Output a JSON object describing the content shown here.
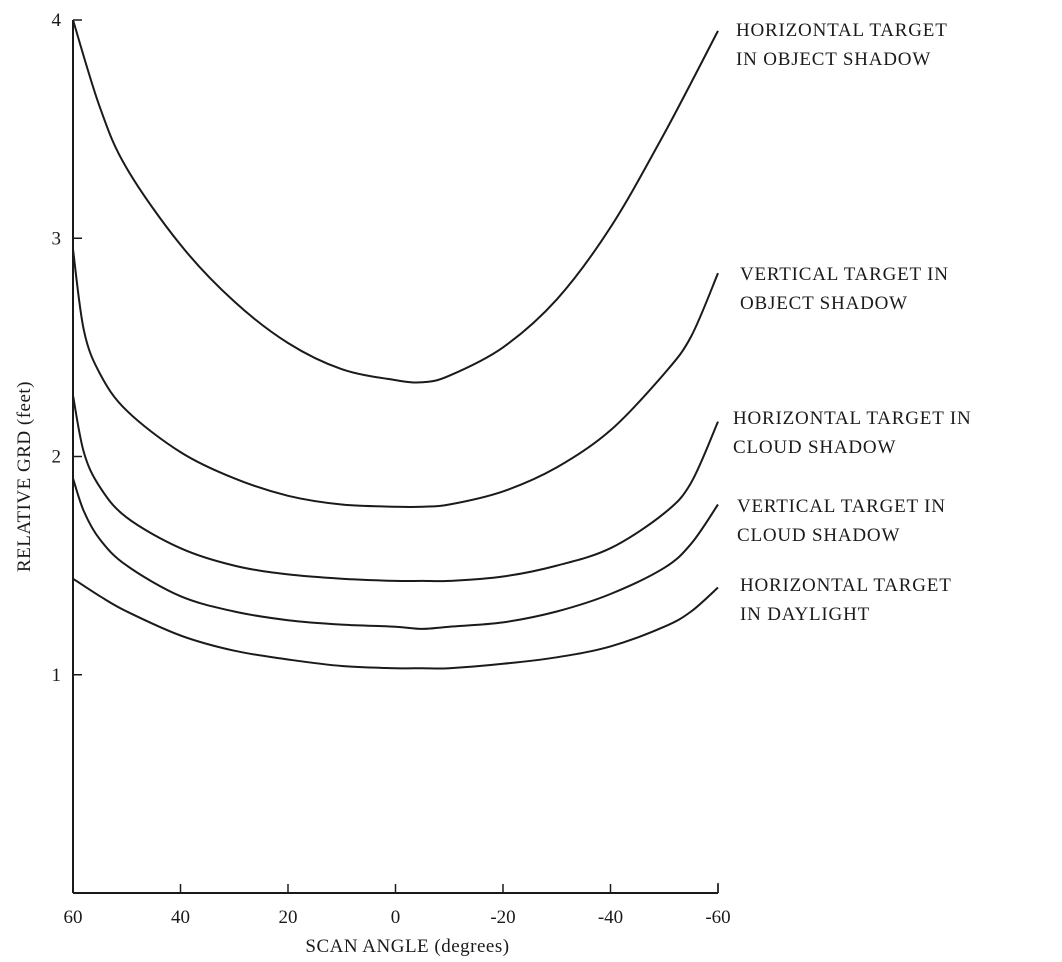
{
  "chart_data": {
    "type": "line",
    "title": "",
    "xlabel": "SCAN ANGLE (degrees)",
    "ylabel": "RELATIVE GRD (feet)",
    "xlim": [
      60,
      -60
    ],
    "ylim": [
      0,
      4
    ],
    "x_ticks": [
      60,
      40,
      20,
      0,
      -20,
      -40,
      -60
    ],
    "x_tick_labels": [
      "60",
      "40",
      "20",
      "0",
      "-20",
      "-40",
      "-60"
    ],
    "y_ticks": [
      1,
      2,
      3,
      4
    ],
    "y_tick_labels": [
      "1",
      "2",
      "3",
      "4"
    ],
    "grid": false,
    "series": [
      {
        "name": "HORIZONTAL TARGET IN OBJECT SHADOW",
        "label_lines": [
          "HORIZONTAL TARGET",
          "IN OBJECT SHADOW"
        ],
        "x": [
          60,
          55,
          50,
          40,
          30,
          20,
          10,
          0,
          -5,
          -10,
          -20,
          -30,
          -40,
          -50,
          -60
        ],
        "y": [
          4.0,
          3.6,
          3.32,
          2.97,
          2.71,
          2.52,
          2.4,
          2.35,
          2.34,
          2.37,
          2.5,
          2.72,
          3.05,
          3.48,
          3.95
        ]
      },
      {
        "name": "VERTICAL TARGET IN OBJECT SHADOW",
        "label_lines": [
          "VERTICAL TARGET IN",
          "OBJECT SHADOW"
        ],
        "x": [
          60,
          58,
          55,
          50,
          40,
          30,
          20,
          10,
          0,
          -5,
          -10,
          -20,
          -30,
          -40,
          -50,
          -55,
          -60
        ],
        "y": [
          2.95,
          2.58,
          2.38,
          2.21,
          2.02,
          1.9,
          1.82,
          1.78,
          1.77,
          1.77,
          1.78,
          1.84,
          1.95,
          2.12,
          2.38,
          2.55,
          2.84
        ]
      },
      {
        "name": "HORIZONTAL TARGET IN CLOUD SHADOW",
        "label_lines": [
          "HORIZONTAL TARGET IN",
          "CLOUD SHADOW"
        ],
        "x": [
          60,
          58,
          55,
          50,
          40,
          30,
          20,
          10,
          0,
          -5,
          -10,
          -20,
          -30,
          -40,
          -50,
          -55,
          -60
        ],
        "y": [
          2.28,
          2.02,
          1.86,
          1.72,
          1.58,
          1.5,
          1.46,
          1.44,
          1.43,
          1.43,
          1.43,
          1.45,
          1.5,
          1.58,
          1.74,
          1.88,
          2.16
        ]
      },
      {
        "name": "VERTICAL TARGET IN CLOUD SHADOW",
        "label_lines": [
          "VERTICAL TARGET IN",
          "CLOUD SHADOW"
        ],
        "x": [
          60,
          58,
          55,
          50,
          40,
          30,
          20,
          10,
          0,
          -5,
          -10,
          -20,
          -30,
          -40,
          -50,
          -55,
          -60
        ],
        "y": [
          1.9,
          1.75,
          1.62,
          1.5,
          1.36,
          1.29,
          1.25,
          1.23,
          1.22,
          1.21,
          1.22,
          1.24,
          1.29,
          1.37,
          1.49,
          1.6,
          1.78
        ]
      },
      {
        "name": "HORIZONTAL TARGET IN DAYLIGHT",
        "label_lines": [
          "HORIZONTAL TARGET",
          "IN DAYLIGHT"
        ],
        "x": [
          60,
          55,
          50,
          40,
          30,
          20,
          10,
          0,
          -5,
          -10,
          -20,
          -30,
          -40,
          -50,
          -55,
          -60
        ],
        "y": [
          1.44,
          1.36,
          1.29,
          1.18,
          1.11,
          1.07,
          1.04,
          1.03,
          1.03,
          1.03,
          1.05,
          1.08,
          1.13,
          1.22,
          1.29,
          1.4
        ]
      }
    ]
  }
}
